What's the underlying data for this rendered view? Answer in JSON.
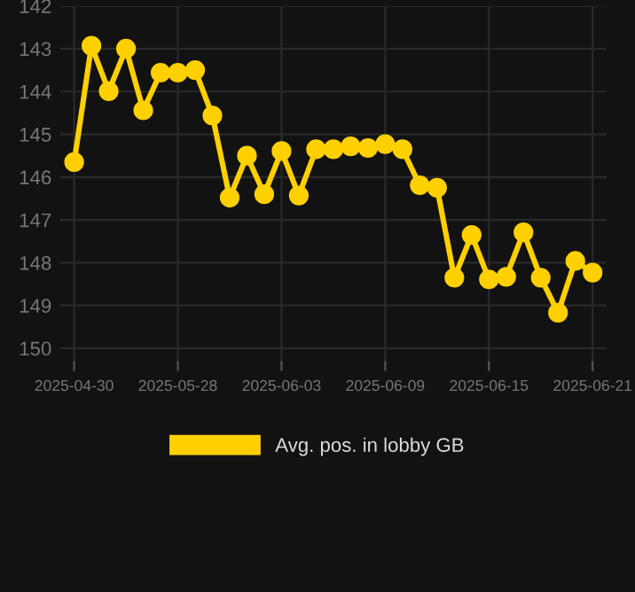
{
  "chart_data": {
    "type": "line",
    "categories": [
      "2025-04-30",
      null,
      null,
      null,
      null,
      null,
      "2025-05-28",
      null,
      null,
      null,
      null,
      null,
      "2025-06-03",
      null,
      null,
      null,
      null,
      null,
      "2025-06-09",
      null,
      null,
      null,
      null,
      null,
      "2025-06-15",
      null,
      null,
      null,
      null,
      null,
      "2025-06-21"
    ],
    "series": [
      {
        "name": "Avg. pos. in lobby GB",
        "color": "#ffd000",
        "values": [
          145.65,
          142.93,
          143.99,
          143.0,
          144.44,
          143.56,
          143.56,
          143.5,
          144.56,
          146.48,
          145.5,
          146.4,
          145.39,
          146.43,
          145.35,
          145.35,
          145.28,
          145.32,
          145.23,
          145.35,
          146.19,
          146.25,
          148.35,
          147.35,
          148.39,
          148.33,
          147.29,
          148.35,
          149.17,
          147.96,
          148.23
        ]
      }
    ],
    "ylim": [
      150.3,
      142
    ],
    "yticks": [
      142,
      143,
      144,
      145,
      146,
      147,
      148,
      149,
      150
    ],
    "grid": true,
    "legend": "bottom",
    "marker": "circle",
    "line_style": "solid"
  }
}
